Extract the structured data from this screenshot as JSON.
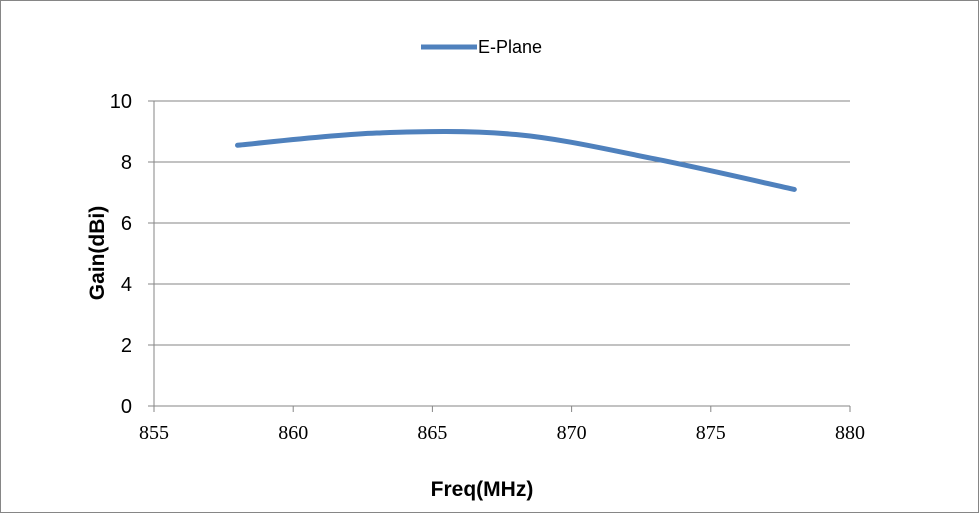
{
  "chart_data": {
    "type": "line",
    "title": "",
    "xlabel": "Freq(MHz)",
    "ylabel": "Gain(dBi)",
    "xlim": [
      855,
      880
    ],
    "ylim": [
      0,
      10
    ],
    "x_ticks": [
      855,
      860,
      865,
      870,
      875,
      880
    ],
    "y_ticks": [
      0,
      2,
      4,
      6,
      8,
      10
    ],
    "grid": "horizontal",
    "legend_position": "top",
    "series": [
      {
        "name": "E-Plane",
        "color": "#4f81bd",
        "smooth": true,
        "x": [
          858,
          863,
          868,
          873,
          878
        ],
        "y": [
          8.55,
          8.95,
          8.9,
          8.1,
          7.1
        ]
      }
    ]
  }
}
